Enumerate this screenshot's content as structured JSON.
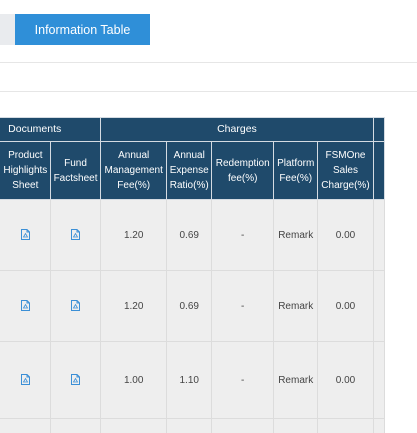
{
  "tabs": {
    "active_label": "Information Table"
  },
  "table": {
    "group_headers": {
      "documents": "Documents",
      "charges": "Charges"
    },
    "columns": {
      "product_highlights_sheet": "Product Highlights Sheet",
      "fund_factsheet": "Fund Factsheet",
      "annual_management_fee": "Annual Management Fee(%)",
      "annual_expense_ratio": "Annual Expense Ratio(%)",
      "redemption_fee": "Redemption fee(%)",
      "platform_fee": "Platform Fee(%)",
      "fsmone_sales_charge": "FSMOne Sales Charge(%)"
    },
    "rows": [
      {
        "product_highlights_icon": "pdf-file-icon",
        "factsheet_icon": "pdf-file-icon",
        "annual_management_fee": "1.20",
        "annual_expense_ratio": "0.69",
        "redemption_fee": "-",
        "platform_fee": "Remark",
        "fsmone_sales_charge": "0.00"
      },
      {
        "product_highlights_icon": "pdf-file-icon",
        "factsheet_icon": "pdf-file-icon",
        "annual_management_fee": "1.20",
        "annual_expense_ratio": "0.69",
        "redemption_fee": "-",
        "platform_fee": "Remark",
        "fsmone_sales_charge": "0.00"
      },
      {
        "product_highlights_icon": "pdf-file-icon",
        "factsheet_icon": "pdf-file-icon",
        "annual_management_fee": "1.00",
        "annual_expense_ratio": "1.10",
        "redemption_fee": "-",
        "platform_fee": "Remark",
        "fsmone_sales_charge": "0.00"
      }
    ]
  },
  "colors": {
    "tab_active": "#2f8fd8",
    "header_bg": "#1f4a6b",
    "row_bg": "#eeeeee",
    "icon": "#3b8fd6"
  }
}
